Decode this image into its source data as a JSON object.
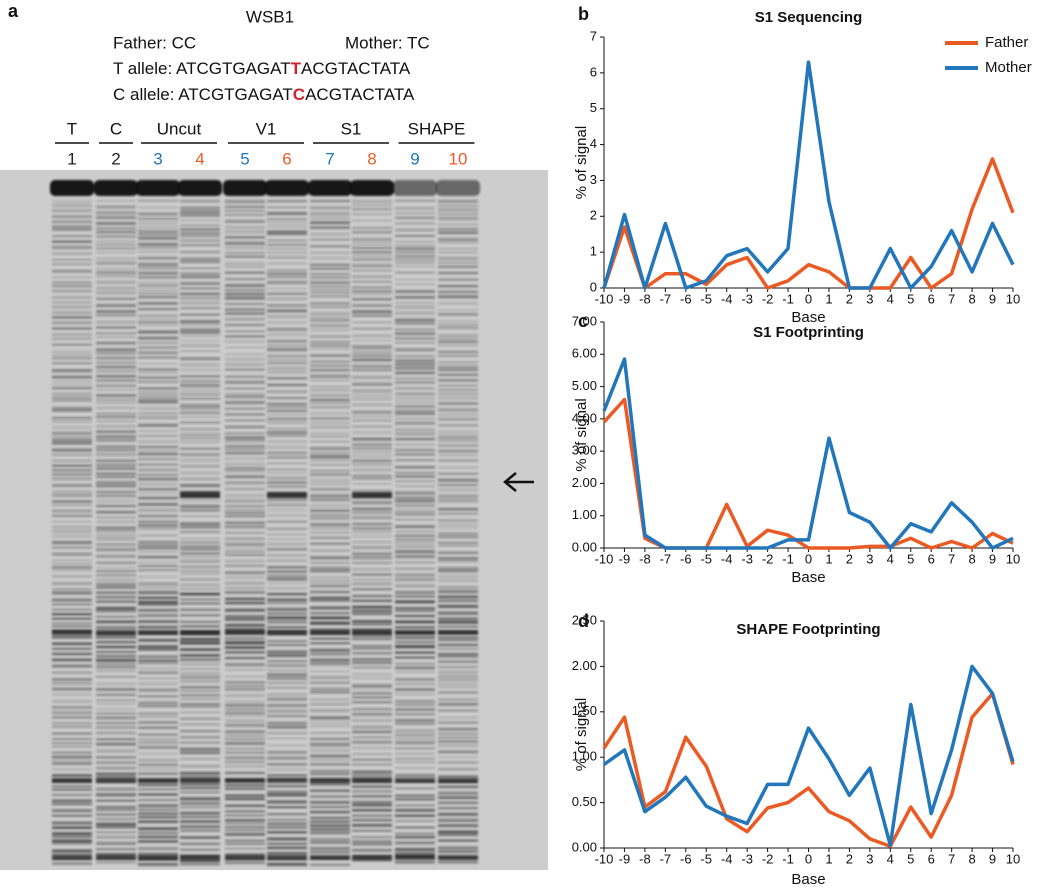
{
  "figure_a": {
    "panel_label": "a",
    "gene": "WSB1",
    "father": "Father: CC",
    "mother": "Mother: TC",
    "t_allele": {
      "prefix": "T allele: ATCGTGAGAT",
      "snp": "T",
      "suffix": "ACGTACTATA"
    },
    "c_allele": {
      "prefix": "C allele: ATCGTGAGAT",
      "snp": "C",
      "suffix": "ACGTACTATA"
    },
    "lane_groups": [
      "T",
      "C",
      "Uncut",
      "V1",
      "S1",
      "SHAPE"
    ],
    "lanes": [
      {
        "label": "1",
        "color": "#222222"
      },
      {
        "label": "2",
        "color": "#222222"
      },
      {
        "label": "3",
        "color": "#2176bc"
      },
      {
        "label": "4",
        "color": "#ec5a24"
      },
      {
        "label": "5",
        "color": "#2176bc"
      },
      {
        "label": "6",
        "color": "#ec5a24"
      },
      {
        "label": "7",
        "color": "#2176bc"
      },
      {
        "label": "8",
        "color": "#ec5a24"
      },
      {
        "label": "9",
        "color": "#2176bc"
      },
      {
        "label": "10",
        "color": "#ec5a24"
      }
    ]
  },
  "chart_data": [
    {
      "type": "line",
      "panel_label": "b",
      "title": "S1 Sequencing",
      "ylabel": "% of  signal",
      "xlabel": "Base",
      "x": [
        -10,
        -9,
        -8,
        -7,
        -6,
        -5,
        -4,
        -3,
        -2,
        -1,
        0,
        1,
        2,
        3,
        4,
        5,
        6,
        7,
        8,
        9,
        10
      ],
      "xlim": [
        -10,
        10
      ],
      "xticks": [
        -10,
        -9,
        -8,
        -7,
        -6,
        -5,
        -4,
        -3,
        -2,
        -1,
        0,
        1,
        2,
        3,
        4,
        5,
        6,
        7,
        8,
        9,
        10
      ],
      "ylim": [
        0,
        7
      ],
      "yticks": [
        0,
        1,
        2,
        3,
        4,
        5,
        6,
        7
      ],
      "legend": "top-right",
      "series": [
        {
          "name": "Father",
          "color": "#ec5a24",
          "values": [
            0,
            1.7,
            0,
            0.4,
            0.4,
            0.1,
            0.65,
            0.85,
            0,
            0.2,
            0.65,
            0.45,
            0,
            0,
            0,
            0.85,
            0,
            0.4,
            2.2,
            3.6,
            2.1
          ]
        },
        {
          "name": "Mother",
          "color": "#2176bc",
          "values": [
            0,
            2.05,
            0,
            1.8,
            0,
            0.2,
            0.9,
            1.1,
            0.45,
            1.1,
            6.3,
            2.4,
            0,
            0,
            1.1,
            0,
            0.6,
            1.6,
            0.45,
            1.8,
            0.65
          ]
        }
      ]
    },
    {
      "type": "line",
      "panel_label": "c",
      "title": "S1 Footprinting",
      "ylabel": "% of  signal",
      "xlabel": "Base",
      "x": [
        -10,
        -9,
        -8,
        -7,
        -6,
        -5,
        -4,
        -3,
        -2,
        -1,
        0,
        1,
        2,
        3,
        4,
        5,
        6,
        7,
        8,
        9,
        10
      ],
      "xlim": [
        -10,
        10
      ],
      "xticks": [
        -10,
        -9,
        -8,
        -7,
        -6,
        -5,
        -4,
        -3,
        -2,
        -1,
        0,
        1,
        2,
        3,
        4,
        5,
        6,
        7,
        8,
        9,
        10
      ],
      "ylim": [
        0,
        7
      ],
      "yticks": [
        {
          "value": 0,
          "label": "0.00"
        },
        {
          "value": 1,
          "label": "1.00"
        },
        {
          "value": 2,
          "label": "2.00"
        },
        {
          "value": 3,
          "label": "3.00"
        },
        {
          "value": 4,
          "label": "4.00"
        },
        {
          "value": 5,
          "label": "5.00"
        },
        {
          "value": 6,
          "label": "6.00"
        },
        {
          "value": 7,
          "label": "7.00"
        }
      ],
      "series": [
        {
          "color": "#ec5a24",
          "values": [
            3.9,
            4.6,
            0.3,
            0,
            0,
            0,
            1.35,
            0.05,
            0.55,
            0.4,
            0,
            0,
            0,
            0.05,
            0.05,
            0.3,
            0,
            0.2,
            0,
            0.45,
            0.15
          ]
        },
        {
          "color": "#2176bc",
          "values": [
            4.25,
            5.85,
            0.4,
            0,
            0,
            0,
            0,
            0,
            0,
            0.25,
            0.25,
            3.4,
            1.1,
            0.8,
            0,
            0.75,
            0.5,
            1.4,
            0.8,
            0,
            0.3
          ]
        }
      ]
    },
    {
      "type": "line",
      "panel_label": "d",
      "title": "SHAPE Footprinting",
      "ylabel": "% of  signal",
      "xlabel": "Base",
      "x": [
        -10,
        -9,
        -8,
        -7,
        -6,
        -5,
        -4,
        -3,
        -2,
        -1,
        0,
        1,
        2,
        3,
        4,
        5,
        6,
        7,
        8,
        9,
        10
      ],
      "xlim": [
        -10,
        10
      ],
      "xticks": [
        -10,
        -9,
        -8,
        -7,
        -6,
        -5,
        -4,
        -3,
        -2,
        -1,
        0,
        1,
        2,
        3,
        4,
        5,
        6,
        7,
        8,
        9,
        10
      ],
      "ylim": [
        0,
        2.5
      ],
      "yticks": [
        {
          "value": 0,
          "label": "0.00"
        },
        {
          "value": 0.5,
          "label": "0.50"
        },
        {
          "value": 1,
          "label": "1.00"
        },
        {
          "value": 1.5,
          "label": "1.50"
        },
        {
          "value": 2,
          "label": "2.00"
        },
        {
          "value": 2.5,
          "label": "2.50"
        }
      ],
      "series": [
        {
          "color": "#ec5a24",
          "values": [
            1.1,
            1.44,
            0.45,
            0.62,
            1.22,
            0.9,
            0.32,
            0.18,
            0.44,
            0.5,
            0.66,
            0.4,
            0.3,
            0.1,
            0.02,
            0.45,
            0.12,
            0.58,
            1.44,
            1.7,
            0.92
          ]
        },
        {
          "color": "#2176bc",
          "values": [
            0.92,
            1.08,
            0.4,
            0.56,
            0.78,
            0.46,
            0.35,
            0.27,
            0.7,
            0.7,
            1.32,
            0.98,
            0.58,
            0.88,
            0.03,
            1.58,
            0.38,
            1.08,
            2.0,
            1.7,
            0.95
          ]
        }
      ]
    }
  ]
}
